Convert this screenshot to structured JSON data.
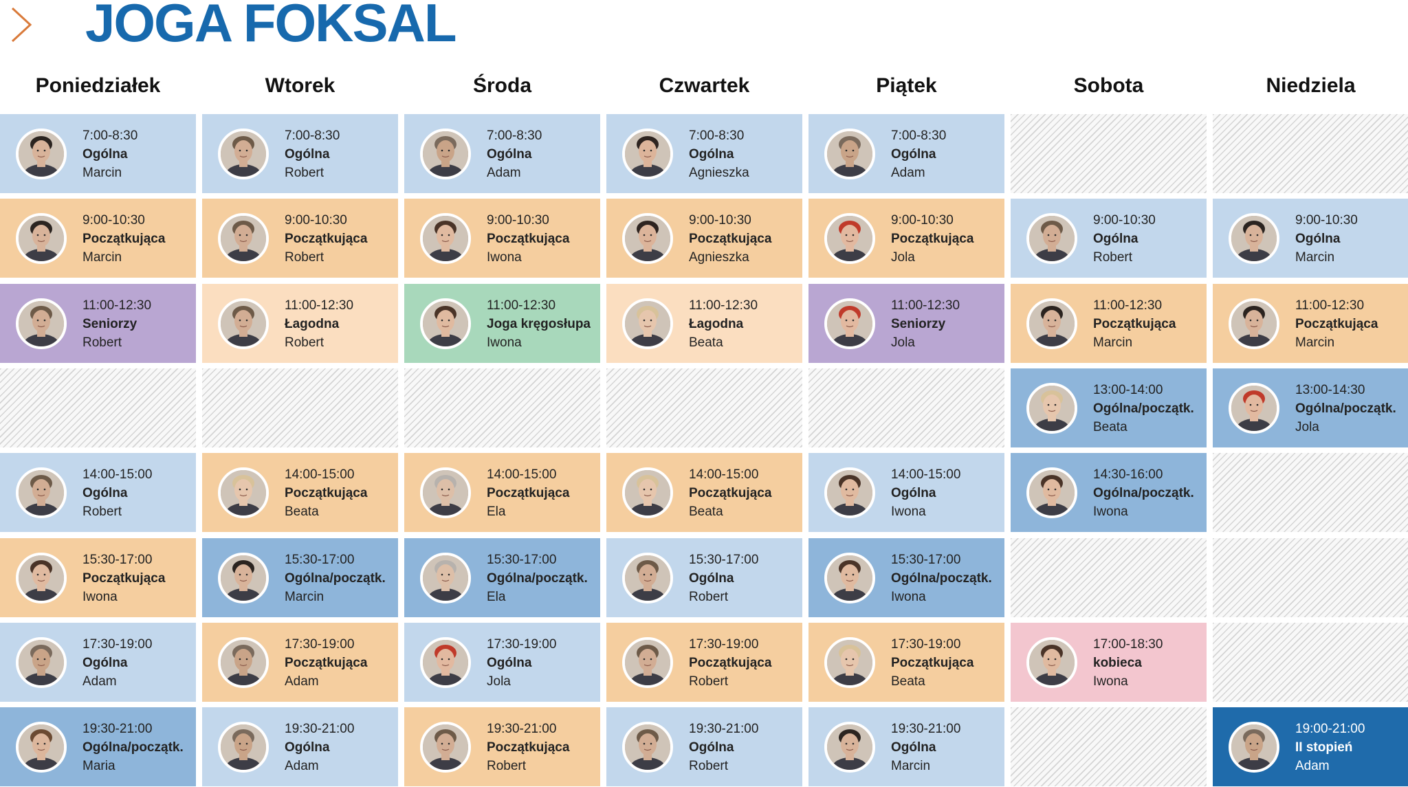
{
  "header": {
    "brand": "JOGA FOKSAL"
  },
  "colors": {
    "light-blue": "#c2d7ec",
    "mid-blue": "#8eb5da",
    "dark-blue": "#1f6bab",
    "orange": "#f5ce9f",
    "light-orange": "#fbdec0",
    "purple": "#b9a6d2",
    "green": "#a8d8bb",
    "pink": "#f3c6cf"
  },
  "days": [
    "Poniedziałek",
    "Wtorek",
    "Środa",
    "Czwartek",
    "Piątek",
    "Sobota",
    "Niedziela"
  ],
  "schedule": [
    [
      {
        "time": "7:00-8:30",
        "cls": "Ogólna",
        "teacher": "Marcin",
        "color": "light-blue"
      },
      {
        "time": "9:00-10:30",
        "cls": "Początkująca",
        "teacher": "Marcin",
        "color": "orange"
      },
      {
        "time": "11:00-12:30",
        "cls": "Seniorzy",
        "teacher": "Robert",
        "color": "purple"
      },
      null,
      {
        "time": "14:00-15:00",
        "cls": "Ogólna",
        "teacher": "Robert",
        "color": "light-blue"
      },
      {
        "time": "15:30-17:00",
        "cls": "Początkująca",
        "teacher": "Iwona",
        "color": "orange"
      },
      {
        "time": "17:30-19:00",
        "cls": "Ogólna",
        "teacher": "Adam",
        "color": "light-blue"
      },
      {
        "time": "19:30-21:00",
        "cls": "Ogólna/początk.",
        "teacher": "Maria",
        "color": "mid-blue"
      }
    ],
    [
      {
        "time": "7:00-8:30",
        "cls": "Ogólna",
        "teacher": "Robert",
        "color": "light-blue"
      },
      {
        "time": "9:00-10:30",
        "cls": "Początkująca",
        "teacher": "Robert",
        "color": "orange"
      },
      {
        "time": "11:00-12:30",
        "cls": "Łagodna",
        "teacher": "Robert",
        "color": "light-orange"
      },
      null,
      {
        "time": "14:00-15:00",
        "cls": "Początkująca",
        "teacher": "Beata",
        "color": "orange"
      },
      {
        "time": "15:30-17:00",
        "cls": "Ogólna/początk.",
        "teacher": "Marcin",
        "color": "mid-blue"
      },
      {
        "time": "17:30-19:00",
        "cls": "Początkująca",
        "teacher": "Adam",
        "color": "orange"
      },
      {
        "time": "19:30-21:00",
        "cls": "Ogólna",
        "teacher": "Adam",
        "color": "light-blue"
      }
    ],
    [
      {
        "time": "7:00-8:30",
        "cls": "Ogólna",
        "teacher": "Adam",
        "color": "light-blue"
      },
      {
        "time": "9:00-10:30",
        "cls": "Początkująca",
        "teacher": "Iwona",
        "color": "orange"
      },
      {
        "time": "11:00-12:30",
        "cls": "Joga kręgosłupa",
        "teacher": "Iwona",
        "color": "green"
      },
      null,
      {
        "time": "14:00-15:00",
        "cls": "Początkująca",
        "teacher": "Ela",
        "color": "orange"
      },
      {
        "time": "15:30-17:00",
        "cls": "Ogólna/początk.",
        "teacher": "Ela",
        "color": "mid-blue"
      },
      {
        "time": "17:30-19:00",
        "cls": "Ogólna",
        "teacher": "Jola",
        "color": "light-blue"
      },
      {
        "time": "19:30-21:00",
        "cls": "Początkująca",
        "teacher": "Robert",
        "color": "orange"
      }
    ],
    [
      {
        "time": "7:00-8:30",
        "cls": "Ogólna",
        "teacher": "Agnieszka",
        "color": "light-blue"
      },
      {
        "time": "9:00-10:30",
        "cls": "Początkująca",
        "teacher": "Agnieszka",
        "color": "orange"
      },
      {
        "time": "11:00-12:30",
        "cls": "Łagodna",
        "teacher": "Beata",
        "color": "light-orange"
      },
      null,
      {
        "time": "14:00-15:00",
        "cls": "Początkująca",
        "teacher": "Beata",
        "color": "orange"
      },
      {
        "time": "15:30-17:00",
        "cls": "Ogólna",
        "teacher": "Robert",
        "color": "light-blue"
      },
      {
        "time": "17:30-19:00",
        "cls": "Początkująca",
        "teacher": "Robert",
        "color": "orange"
      },
      {
        "time": "19:30-21:00",
        "cls": "Ogólna",
        "teacher": "Robert",
        "color": "light-blue"
      }
    ],
    [
      {
        "time": "7:00-8:30",
        "cls": "Ogólna",
        "teacher": "Adam",
        "color": "light-blue"
      },
      {
        "time": "9:00-10:30",
        "cls": "Początkująca",
        "teacher": "Jola",
        "color": "orange"
      },
      {
        "time": "11:00-12:30",
        "cls": "Seniorzy",
        "teacher": "Jola",
        "color": "purple"
      },
      null,
      {
        "time": "14:00-15:00",
        "cls": "Ogólna",
        "teacher": "Iwona",
        "color": "light-blue"
      },
      {
        "time": "15:30-17:00",
        "cls": "Ogólna/początk.",
        "teacher": "Iwona",
        "color": "mid-blue"
      },
      {
        "time": "17:30-19:00",
        "cls": "Początkująca",
        "teacher": "Beata",
        "color": "orange"
      },
      {
        "time": "19:30-21:00",
        "cls": "Ogólna",
        "teacher": "Marcin",
        "color": "light-blue"
      }
    ],
    [
      null,
      {
        "time": "9:00-10:30",
        "cls": "Ogólna",
        "teacher": "Robert",
        "color": "light-blue"
      },
      {
        "time": "11:00-12:30",
        "cls": "Początkująca",
        "teacher": "Marcin",
        "color": "orange"
      },
      {
        "time": "13:00-14:00",
        "cls": "Ogólna/początk.",
        "teacher": "Beata",
        "color": "mid-blue"
      },
      {
        "time": "14:30-16:00",
        "cls": "Ogólna/początk.",
        "teacher": "Iwona",
        "color": "mid-blue"
      },
      null,
      {
        "time": "17:00-18:30",
        "cls": "kobieca",
        "teacher": "Iwona",
        "color": "pink"
      },
      null
    ],
    [
      null,
      {
        "time": "9:00-10:30",
        "cls": "Ogólna",
        "teacher": "Marcin",
        "color": "light-blue"
      },
      {
        "time": "11:00-12:30",
        "cls": "Początkująca",
        "teacher": "Marcin",
        "color": "orange"
      },
      {
        "time": "13:00-14:30",
        "cls": "Ogólna/początk.",
        "teacher": "Jola",
        "color": "mid-blue"
      },
      null,
      null,
      null,
      {
        "time": "19:00-21:00",
        "cls": "II stopień",
        "teacher": "Adam",
        "color": "dark-blue"
      }
    ]
  ]
}
